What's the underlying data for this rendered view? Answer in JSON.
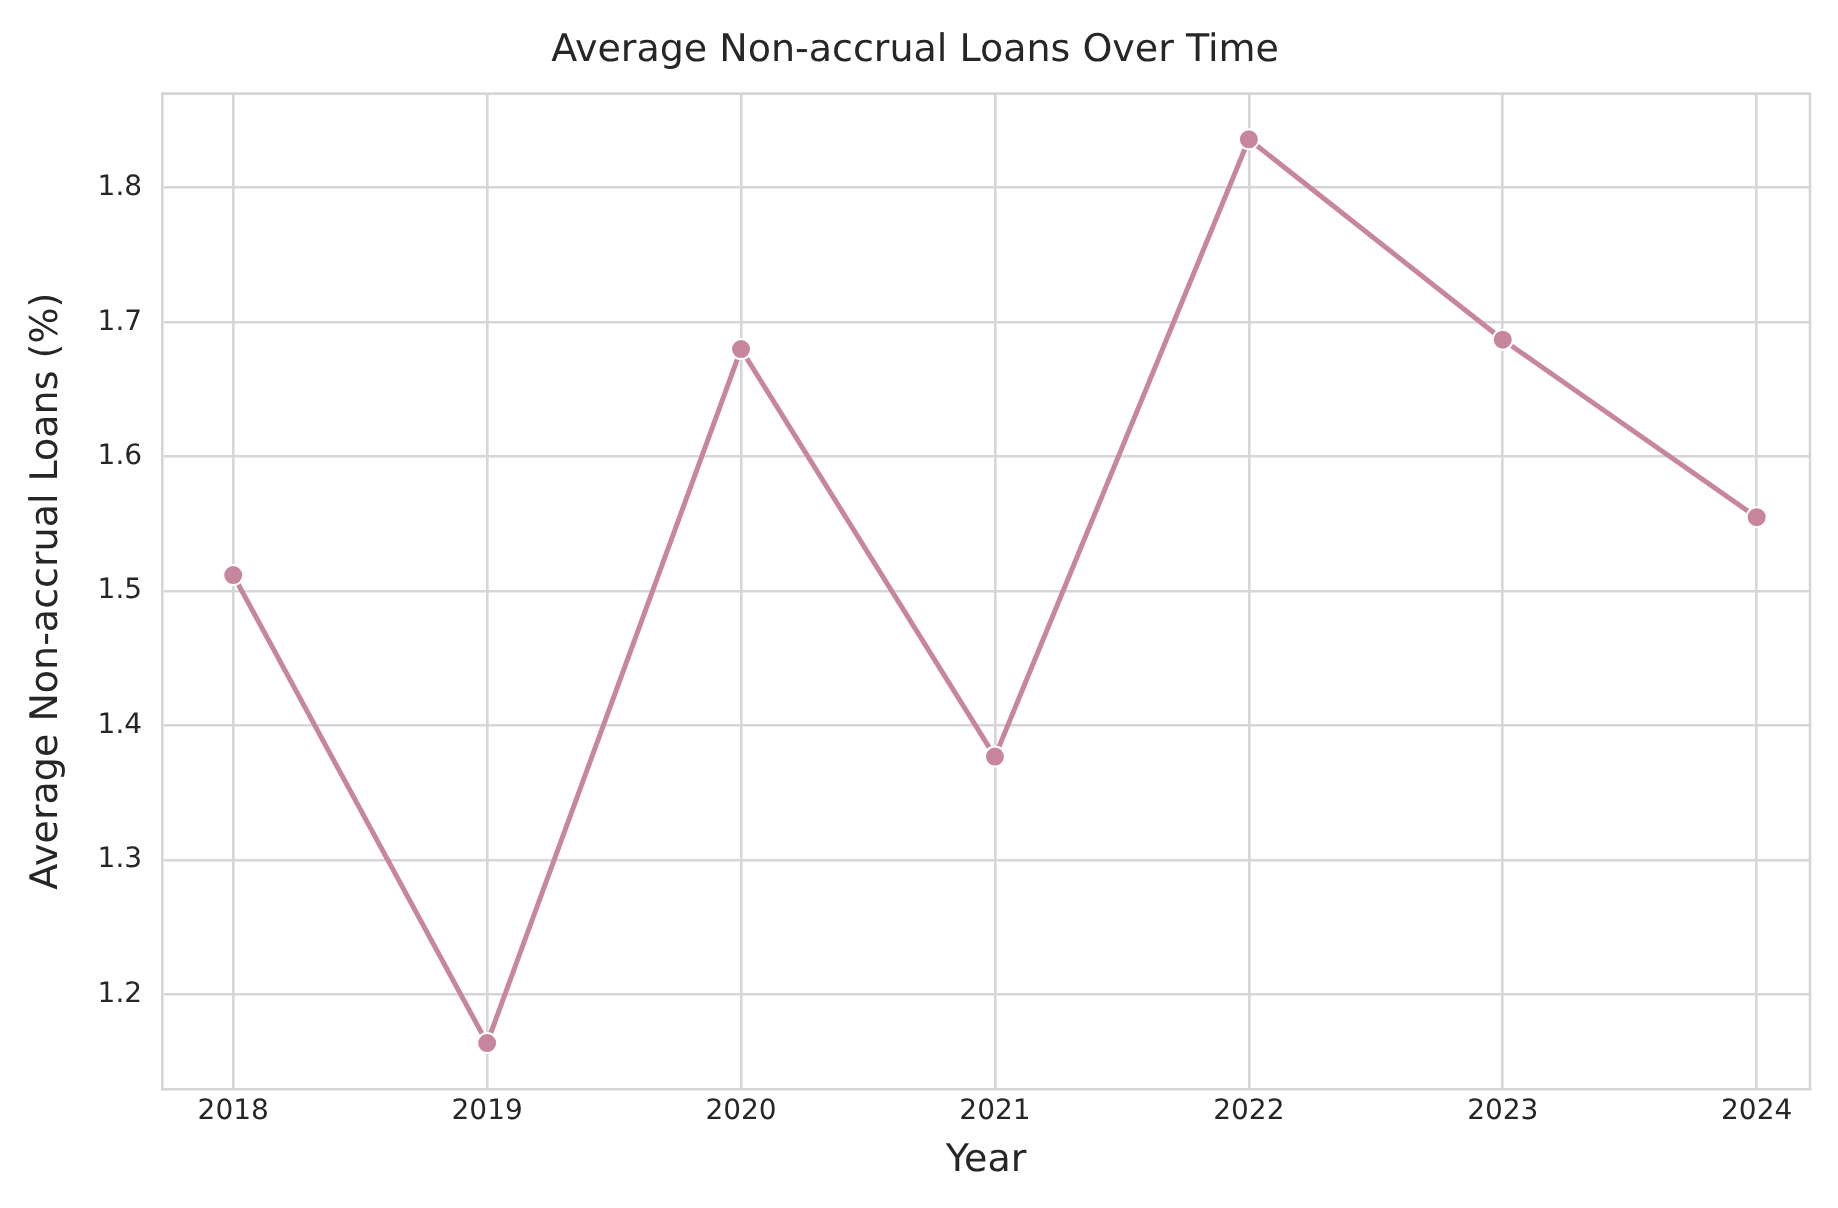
{
  "chart_data": {
    "type": "line",
    "title": "Average Non-accrual Loans Over Time",
    "xlabel": "Year",
    "ylabel": "Average Non-accrual Loans (%)",
    "x": [
      2018,
      2019,
      2020,
      2021,
      2022,
      2023,
      2024
    ],
    "series": [
      {
        "color": "#c7869d",
        "values": [
          1.512,
          1.164,
          1.68,
          1.377,
          1.836,
          1.687,
          1.555
        ]
      }
    ],
    "xlim": [
      2017.72,
      2024.21
    ],
    "xticks": [
      2018,
      2019,
      2020,
      2021,
      2022,
      2023,
      2024
    ],
    "ylim": [
      1.13,
      1.87
    ],
    "yticks": [
      1.2,
      1.3,
      1.4,
      1.5,
      1.6,
      1.7,
      1.8
    ],
    "grid": true,
    "marker": "circle",
    "line_style": "solid",
    "legend": false
  }
}
